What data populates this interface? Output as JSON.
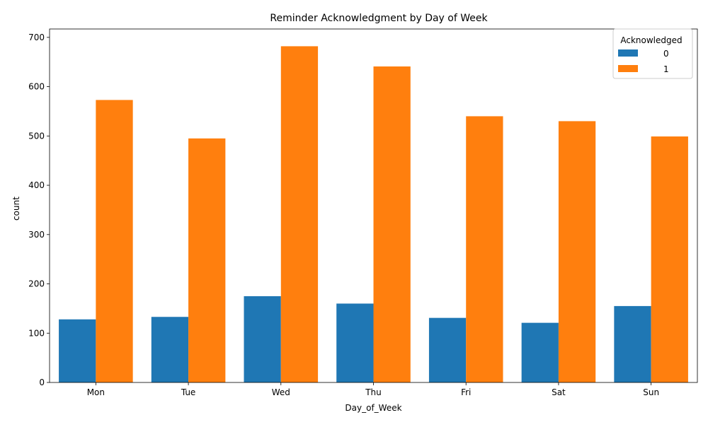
{
  "chart_data": {
    "type": "bar",
    "title": "Reminder Acknowledgment by Day of Week",
    "xlabel": "Day_of_Week",
    "ylabel": "count",
    "categories": [
      "Mon",
      "Tue",
      "Wed",
      "Thu",
      "Fri",
      "Sat",
      "Sun"
    ],
    "series": [
      {
        "name": "0",
        "color": "#1f77b4",
        "values": [
          128,
          133,
          175,
          160,
          131,
          121,
          155
        ]
      },
      {
        "name": "1",
        "color": "#ff7f0e",
        "values": [
          573,
          495,
          682,
          641,
          540,
          530,
          499
        ]
      }
    ],
    "ylim": [
      0,
      717
    ],
    "yticks": [
      0,
      100,
      200,
      300,
      400,
      500,
      600,
      700
    ],
    "legend": {
      "title": "Acknowledged",
      "placement": "top-right"
    },
    "grid": false
  }
}
